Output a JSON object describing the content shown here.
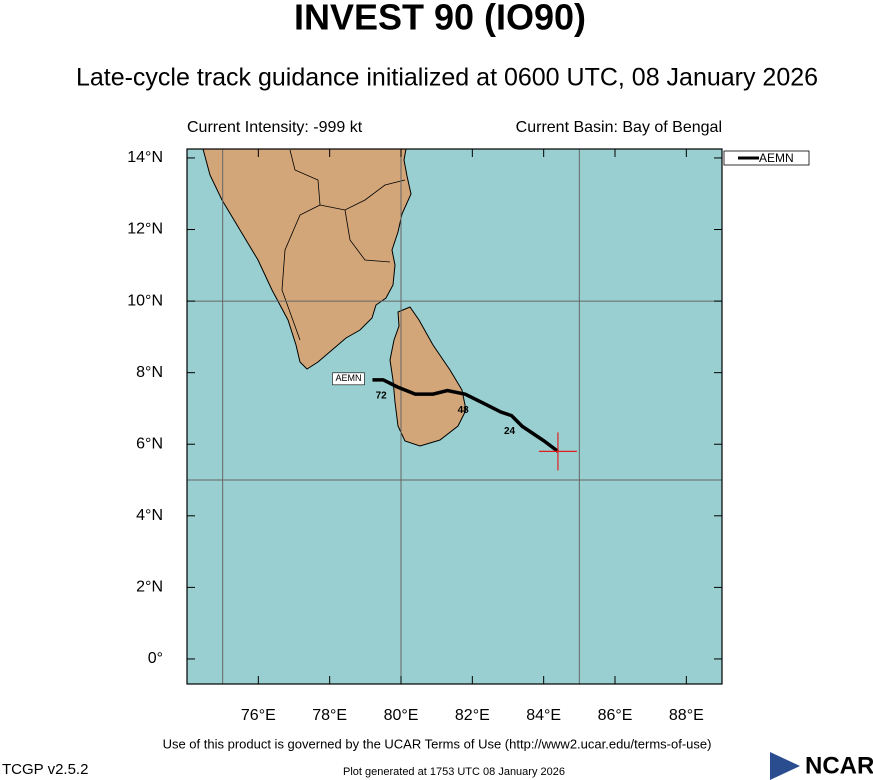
{
  "chart_data": {
    "type": "line",
    "title": "INVEST 90 (IO90)",
    "subtitle": "Late-cycle track guidance initialized at 0600 UTC, 08 January 2026",
    "info_left": "Current Intensity: -999 kt",
    "info_right": "Current Basin: Bay of Bengal",
    "x": [
      84.4,
      84.0,
      83.7,
      83.4,
      83.1,
      82.8,
      82.4,
      81.8,
      81.3,
      80.9,
      80.4,
      79.9,
      79.5,
      79.2
    ],
    "series": [
      {
        "name": "AEMN",
        "color": "#000000",
        "values": [
          5.8,
          6.1,
          6.3,
          6.5,
          6.8,
          6.9,
          7.1,
          7.4,
          7.5,
          7.4,
          7.4,
          7.6,
          7.8,
          7.8
        ],
        "point_labels": [
          null,
          null,
          null,
          null,
          "24",
          null,
          null,
          "48",
          null,
          null,
          null,
          null,
          "72",
          null
        ]
      }
    ],
    "xlim": [
      74,
      89
    ],
    "ylim": [
      -0.7,
      14.25
    ],
    "xticks": [
      {
        "value": 76,
        "label": "76°E"
      },
      {
        "value": 78,
        "label": "78°E"
      },
      {
        "value": 80,
        "label": "80°E"
      },
      {
        "value": 82,
        "label": "82°E"
      },
      {
        "value": 84,
        "label": "84°E"
      },
      {
        "value": 86,
        "label": "86°E"
      },
      {
        "value": 88,
        "label": "88°E"
      }
    ],
    "yticks": [
      {
        "value": 0,
        "label": "0°"
      },
      {
        "value": 2,
        "label": "2°N"
      },
      {
        "value": 4,
        "label": "4°N"
      },
      {
        "value": 6,
        "label": "6°N"
      },
      {
        "value": 8,
        "label": "8°N"
      },
      {
        "value": 10,
        "label": "10°N"
      },
      {
        "value": 12,
        "label": "12°N"
      },
      {
        "value": 14,
        "label": "14°N"
      }
    ],
    "xgrid": [
      75,
      80,
      85
    ],
    "ygrid": [
      5,
      10
    ],
    "footer_terms": "Use of this product is governed by the UCAR Terms of Use (http://www2.ucar.edu/terms-of-use)",
    "footer_version": "TCGP v2.5.2",
    "footer_generated": "Plot generated at 1753 UTC   08 January 2026",
    "logo": "NCAR"
  }
}
